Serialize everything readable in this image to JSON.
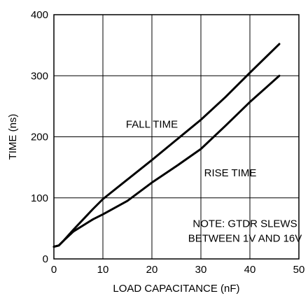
{
  "chart_data": {
    "type": "line",
    "title": "",
    "xlabel": "LOAD CAPACITANCE (nF)",
    "ylabel": "TIME (ns)",
    "xlim": [
      0,
      50
    ],
    "ylim": [
      0,
      400
    ],
    "xticks": [
      0,
      10,
      20,
      30,
      40,
      50
    ],
    "yticks": [
      0,
      100,
      200,
      300,
      400
    ],
    "grid": true,
    "legend": "none",
    "line_color": "#000000",
    "series": [
      {
        "name": "FALL TIME",
        "x": [
          0,
          1,
          2,
          4,
          6,
          8,
          10,
          15,
          20,
          25,
          30,
          35,
          40,
          46
        ],
        "y": [
          20,
          22,
          30,
          48,
          65,
          82,
          98,
          130,
          162,
          195,
          228,
          265,
          305,
          352
        ]
      },
      {
        "name": "RISE TIME",
        "x": [
          0,
          1,
          2,
          4,
          6,
          8,
          10,
          15,
          20,
          25,
          30,
          35,
          40,
          46
        ],
        "y": [
          20,
          22,
          30,
          45,
          55,
          65,
          73,
          95,
          125,
          152,
          180,
          218,
          257,
          300
        ]
      }
    ],
    "annotations": [
      {
        "text": "FALL TIME",
        "x": 20,
        "y": 215
      },
      {
        "text": "RISE TIME",
        "x": 36,
        "y": 135
      },
      {
        "text": "NOTE: GTDR SLEWS",
        "x": 39,
        "y": 52
      },
      {
        "text": "BETWEEN 1V AND 16V",
        "x": 39,
        "y": 28
      }
    ]
  }
}
